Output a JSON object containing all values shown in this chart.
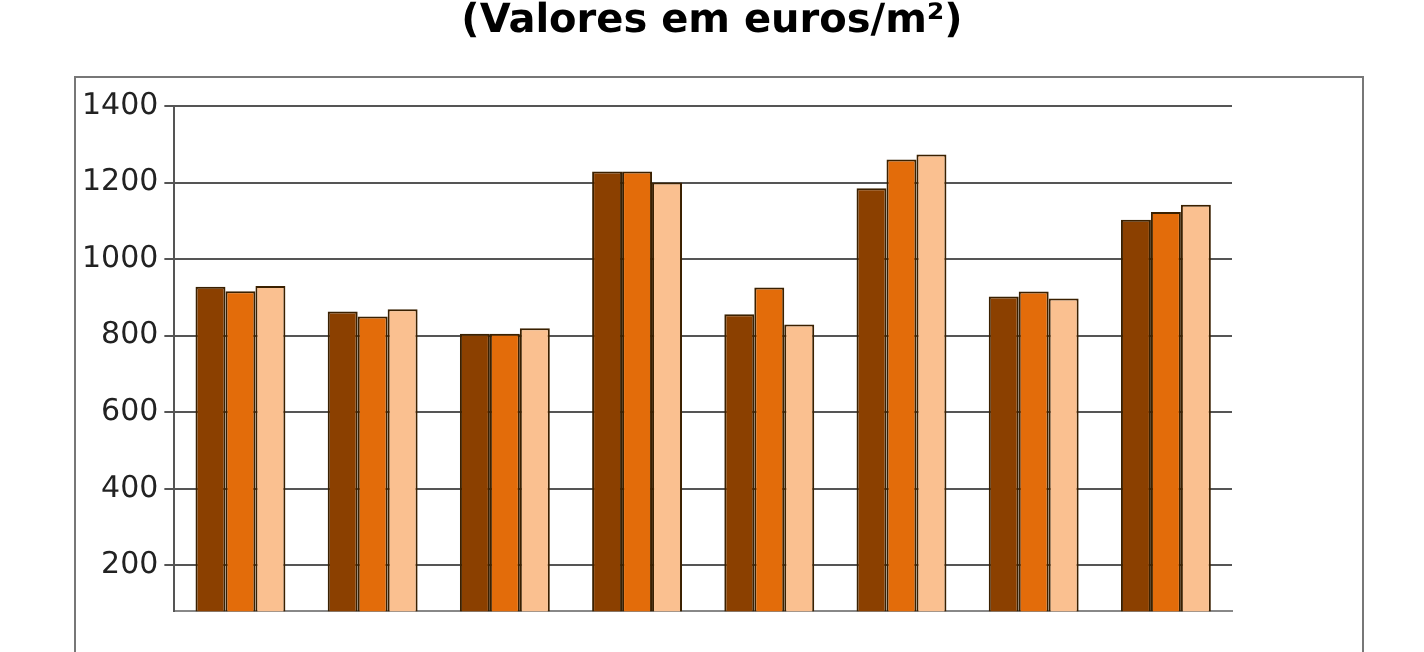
{
  "chart_data": {
    "type": "bar",
    "title": "(Valores em euros/m²)",
    "categories": [
      null,
      null,
      null,
      null,
      null,
      null,
      null,
      null
    ],
    "series": [
      {
        "color": "#8b4000",
        "values": [
          928,
          863,
          805,
          1229,
          856,
          1185,
          902,
          1103
        ]
      },
      {
        "color": "#e36c0a",
        "values": [
          916,
          850,
          805,
          1229,
          926,
          1260,
          915,
          1123
        ]
      },
      {
        "color": "#fac090",
        "values": [
          930,
          869,
          819,
          1200,
          829,
          1273,
          897,
          1142
        ]
      }
    ],
    "ylim": [
      80,
      1400
    ],
    "yticks": [
      200,
      400,
      600,
      800,
      1000,
      1200,
      1400
    ],
    "grid": "y",
    "legend": false
  }
}
